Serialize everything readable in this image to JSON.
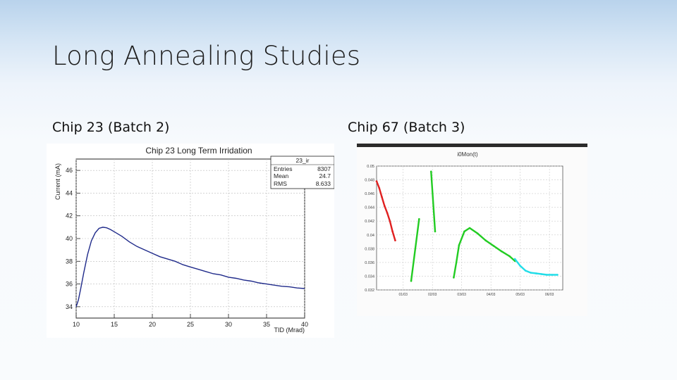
{
  "slide": {
    "title": "Long Annealing Studies",
    "left_caption": "Chip 23 (Batch 2)",
    "right_caption": "Chip 67 (Batch 3)"
  },
  "chart_data": [
    {
      "type": "line",
      "title": "Chip 23 Long Term Irridation",
      "xlabel": "TID (Mrad)",
      "ylabel": "Current (mA)",
      "xlim": [
        10,
        40
      ],
      "ylim": [
        33,
        47
      ],
      "x_ticks": [
        10,
        15,
        20,
        25,
        30,
        35,
        40
      ],
      "y_ticks": [
        34,
        36,
        38,
        40,
        42,
        44,
        46
      ],
      "grid": true,
      "stats_box": {
        "name": "23_ir",
        "rows": [
          {
            "label": "Entries",
            "value": "8307"
          },
          {
            "label": "Mean",
            "value": "24.7"
          },
          {
            "label": "RMS",
            "value": "8.633"
          }
        ]
      },
      "series": [
        {
          "color": "#1f2a8a",
          "x": [
            10.0,
            10.3,
            10.6,
            11.0,
            11.5,
            12.0,
            12.5,
            13.0,
            13.5,
            14.0,
            14.5,
            15.0,
            16.0,
            17.0,
            18.0,
            19.0,
            20.0,
            21.0,
            22.0,
            23.0,
            24.0,
            25.0,
            26.0,
            27.0,
            28.0,
            29.0,
            30.0,
            31.0,
            32.0,
            33.0,
            34.0,
            35.0,
            36.0,
            37.0,
            38.0,
            39.0,
            40.0
          ],
          "y": [
            34.0,
            34.6,
            35.6,
            37.0,
            38.6,
            39.8,
            40.5,
            40.9,
            41.0,
            40.95,
            40.8,
            40.6,
            40.2,
            39.7,
            39.3,
            39.0,
            38.7,
            38.4,
            38.2,
            38.0,
            37.7,
            37.5,
            37.3,
            37.1,
            36.9,
            36.8,
            36.6,
            36.5,
            36.35,
            36.25,
            36.1,
            36.0,
            35.9,
            35.8,
            35.75,
            35.65,
            35.6
          ]
        }
      ]
    },
    {
      "type": "scatter",
      "title": "i0Mon(t)",
      "ylim": [
        0.032,
        0.05
      ],
      "y_ticks": [
        0.032,
        0.034,
        0.036,
        0.038,
        0.04,
        0.042,
        0.044,
        0.046,
        0.048,
        0.05
      ],
      "y_tick_labels": [
        "0.032",
        "0.034",
        "0.036",
        "0.038",
        "0.04",
        "0.042",
        "0.044",
        "0.046",
        "0.048",
        "0.05"
      ],
      "x_tick_labels": [
        "01/03",
        "02/03",
        "03/03",
        "04/03",
        "05/03",
        "06/03"
      ],
      "grid": true,
      "series": [
        {
          "color": "#e02020",
          "x": [
            0.0,
            0.1,
            0.2,
            0.3,
            0.4,
            0.5,
            0.6,
            0.7
          ],
          "y": [
            0.0478,
            0.0468,
            0.0455,
            0.0442,
            0.0432,
            0.042,
            0.0405,
            0.0392
          ]
        },
        {
          "color": "#22cc22",
          "x": [
            1.3,
            1.6
          ],
          "y": [
            0.0333,
            0.0423
          ]
        },
        {
          "color": "#22cc22",
          "x": [
            2.05,
            2.2
          ],
          "y": [
            0.0492,
            0.0405
          ]
        },
        {
          "color": "#22cc22",
          "x": [
            2.9,
            3.0,
            3.1,
            3.3,
            3.5,
            3.8,
            4.1,
            4.4,
            4.7,
            5.0,
            5.2
          ],
          "y": [
            0.0338,
            0.036,
            0.0385,
            0.0405,
            0.041,
            0.0402,
            0.0392,
            0.0384,
            0.0376,
            0.0369,
            0.0362
          ]
        },
        {
          "color": "#22dde8",
          "x": [
            5.2,
            5.4,
            5.6,
            5.8,
            6.0,
            6.2,
            6.4,
            6.6,
            6.8
          ],
          "y": [
            0.0365,
            0.0355,
            0.0348,
            0.0345,
            0.0344,
            0.0343,
            0.0342,
            0.0342,
            0.0342
          ]
        }
      ]
    }
  ]
}
